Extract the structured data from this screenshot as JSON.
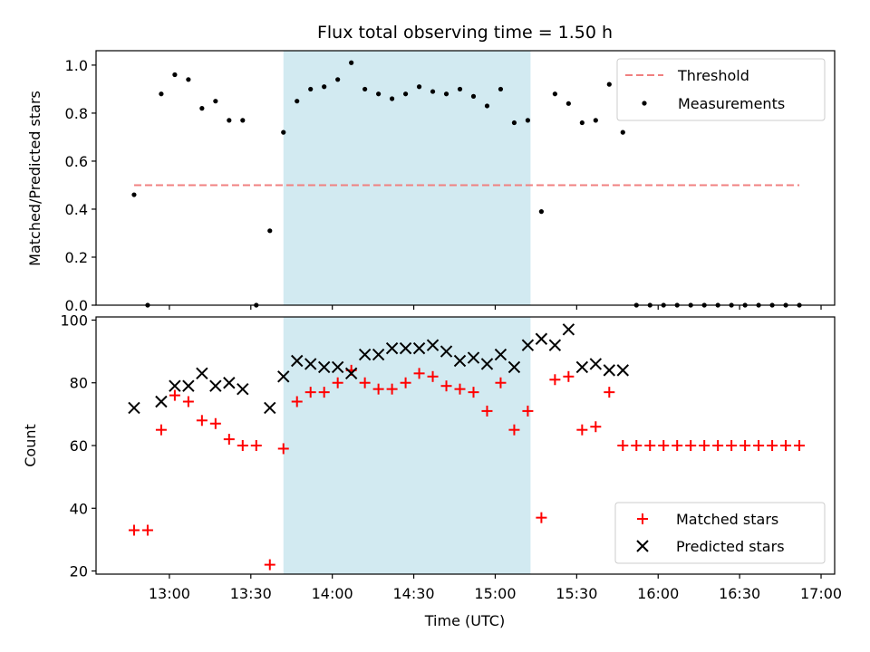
{
  "chart_data": [
    {
      "type": "scatter",
      "title": "Flux total observing time = 1.50 h",
      "ylabel": "Matched/Predicted stars",
      "ylim": [
        0,
        1.06
      ],
      "yticks": [
        0.0,
        0.2,
        0.4,
        0.6,
        0.8,
        1.0
      ],
      "ytick_labels": [
        "0.0",
        "0.2",
        "0.4",
        "0.6",
        "0.8",
        "1.0"
      ],
      "x_is_time": true,
      "shaded_interval": [
        "13:42",
        "15:13"
      ],
      "shade_color": "#add8e6",
      "threshold": {
        "name": "Threshold",
        "value": 0.5,
        "x_start": "12:47",
        "x_end": "16:52",
        "color": "#f08080",
        "style": "dashed"
      },
      "series": [
        {
          "name": "Measurements",
          "marker": "dot",
          "color": "#000000",
          "points": [
            [
              "12:47",
              0.46
            ],
            [
              "12:52",
              0.0
            ],
            [
              "12:57",
              0.88
            ],
            [
              "13:02",
              0.96
            ],
            [
              "13:07",
              0.94
            ],
            [
              "13:12",
              0.82
            ],
            [
              "13:17",
              0.85
            ],
            [
              "13:22",
              0.77
            ],
            [
              "13:27",
              0.77
            ],
            [
              "13:32",
              0.0
            ],
            [
              "13:37",
              0.31
            ],
            [
              "13:42",
              0.72
            ],
            [
              "13:47",
              0.85
            ],
            [
              "13:52",
              0.9
            ],
            [
              "13:57",
              0.91
            ],
            [
              "14:02",
              0.94
            ],
            [
              "14:07",
              1.01
            ],
            [
              "14:12",
              0.9
            ],
            [
              "14:17",
              0.88
            ],
            [
              "14:22",
              0.86
            ],
            [
              "14:27",
              0.88
            ],
            [
              "14:32",
              0.91
            ],
            [
              "14:37",
              0.89
            ],
            [
              "14:42",
              0.88
            ],
            [
              "14:47",
              0.9
            ],
            [
              "14:52",
              0.87
            ],
            [
              "14:57",
              0.83
            ],
            [
              "15:02",
              0.9
            ],
            [
              "15:07",
              0.76
            ],
            [
              "15:12",
              0.77
            ],
            [
              "15:17",
              0.39
            ],
            [
              "15:22",
              0.88
            ],
            [
              "15:27",
              0.84
            ],
            [
              "15:32",
              0.76
            ],
            [
              "15:37",
              0.77
            ],
            [
              "15:42",
              0.92
            ],
            [
              "15:47",
              0.72
            ],
            [
              "15:52",
              0.0
            ],
            [
              "15:57",
              0.0
            ],
            [
              "16:02",
              0.0
            ],
            [
              "16:07",
              0.0
            ],
            [
              "16:12",
              0.0
            ],
            [
              "16:17",
              0.0
            ],
            [
              "16:22",
              0.0
            ],
            [
              "16:27",
              0.0
            ],
            [
              "16:32",
              0.0
            ],
            [
              "16:37",
              0.0
            ],
            [
              "16:42",
              0.0
            ],
            [
              "16:47",
              0.0
            ],
            [
              "16:52",
              0.0
            ]
          ]
        }
      ],
      "legend": {
        "placement": "top-right",
        "entries": [
          "Threshold",
          "Measurements"
        ]
      }
    },
    {
      "type": "scatter",
      "xlabel": "Time (UTC)",
      "ylabel": "Count",
      "ylim": [
        19,
        101
      ],
      "yticks": [
        20,
        40,
        60,
        80,
        100
      ],
      "ytick_labels": [
        "20",
        "40",
        "60",
        "80",
        "100"
      ],
      "xlim": [
        "12:33",
        "17:05"
      ],
      "xticks": [
        "13:00",
        "13:30",
        "14:00",
        "14:30",
        "15:00",
        "15:30",
        "16:00",
        "16:30",
        "17:00"
      ],
      "x_is_time": true,
      "shaded_interval": [
        "13:42",
        "15:13"
      ],
      "shade_color": "#add8e6",
      "series": [
        {
          "name": "Matched stars",
          "marker": "plus",
          "color": "#ff0000",
          "points": [
            [
              "12:47",
              33
            ],
            [
              "12:52",
              33
            ],
            [
              "12:57",
              65
            ],
            [
              "13:02",
              76
            ],
            [
              "13:07",
              74
            ],
            [
              "13:12",
              68
            ],
            [
              "13:17",
              67
            ],
            [
              "13:22",
              62
            ],
            [
              "13:27",
              60
            ],
            [
              "13:32",
              60
            ],
            [
              "13:37",
              22
            ],
            [
              "13:42",
              59
            ],
            [
              "13:47",
              74
            ],
            [
              "13:52",
              77
            ],
            [
              "13:57",
              77
            ],
            [
              "14:02",
              80
            ],
            [
              "14:07",
              84
            ],
            [
              "14:12",
              80
            ],
            [
              "14:17",
              78
            ],
            [
              "14:22",
              78
            ],
            [
              "14:27",
              80
            ],
            [
              "14:32",
              83
            ],
            [
              "14:37",
              82
            ],
            [
              "14:42",
              79
            ],
            [
              "14:47",
              78
            ],
            [
              "14:52",
              77
            ],
            [
              "14:57",
              71
            ],
            [
              "15:02",
              80
            ],
            [
              "15:07",
              65
            ],
            [
              "15:12",
              71
            ],
            [
              "15:17",
              37
            ],
            [
              "15:22",
              81
            ],
            [
              "15:27",
              82
            ],
            [
              "15:32",
              65
            ],
            [
              "15:37",
              66
            ],
            [
              "15:42",
              77
            ],
            [
              "15:47",
              60
            ],
            [
              "15:52",
              60
            ],
            [
              "15:57",
              60
            ],
            [
              "16:02",
              60
            ],
            [
              "16:07",
              60
            ],
            [
              "16:12",
              60
            ],
            [
              "16:17",
              60
            ],
            [
              "16:22",
              60
            ],
            [
              "16:27",
              60
            ],
            [
              "16:32",
              60
            ],
            [
              "16:37",
              60
            ],
            [
              "16:42",
              60
            ],
            [
              "16:47",
              60
            ],
            [
              "16:52",
              60
            ]
          ]
        },
        {
          "name": "Predicted stars",
          "marker": "x",
          "color": "#000000",
          "points": [
            [
              "12:47",
              72
            ],
            [
              "12:57",
              74
            ],
            [
              "13:02",
              79
            ],
            [
              "13:07",
              79
            ],
            [
              "13:12",
              83
            ],
            [
              "13:17",
              79
            ],
            [
              "13:22",
              80
            ],
            [
              "13:27",
              78
            ],
            [
              "13:37",
              72
            ],
            [
              "13:42",
              82
            ],
            [
              "13:47",
              87
            ],
            [
              "13:52",
              86
            ],
            [
              "13:57",
              85
            ],
            [
              "14:02",
              85
            ],
            [
              "14:07",
              83
            ],
            [
              "14:12",
              89
            ],
            [
              "14:17",
              89
            ],
            [
              "14:22",
              91
            ],
            [
              "14:27",
              91
            ],
            [
              "14:32",
              91
            ],
            [
              "14:37",
              92
            ],
            [
              "14:42",
              90
            ],
            [
              "14:47",
              87
            ],
            [
              "14:52",
              88
            ],
            [
              "14:57",
              86
            ],
            [
              "15:02",
              89
            ],
            [
              "15:07",
              85
            ],
            [
              "15:12",
              92
            ],
            [
              "15:17",
              94
            ],
            [
              "15:22",
              92
            ],
            [
              "15:27",
              97
            ],
            [
              "15:32",
              85
            ],
            [
              "15:37",
              86
            ],
            [
              "15:42",
              84
            ],
            [
              "15:47",
              84
            ]
          ]
        }
      ],
      "legend": {
        "placement": "bottom-right",
        "entries": [
          "Matched stars",
          "Predicted stars"
        ]
      }
    }
  ]
}
